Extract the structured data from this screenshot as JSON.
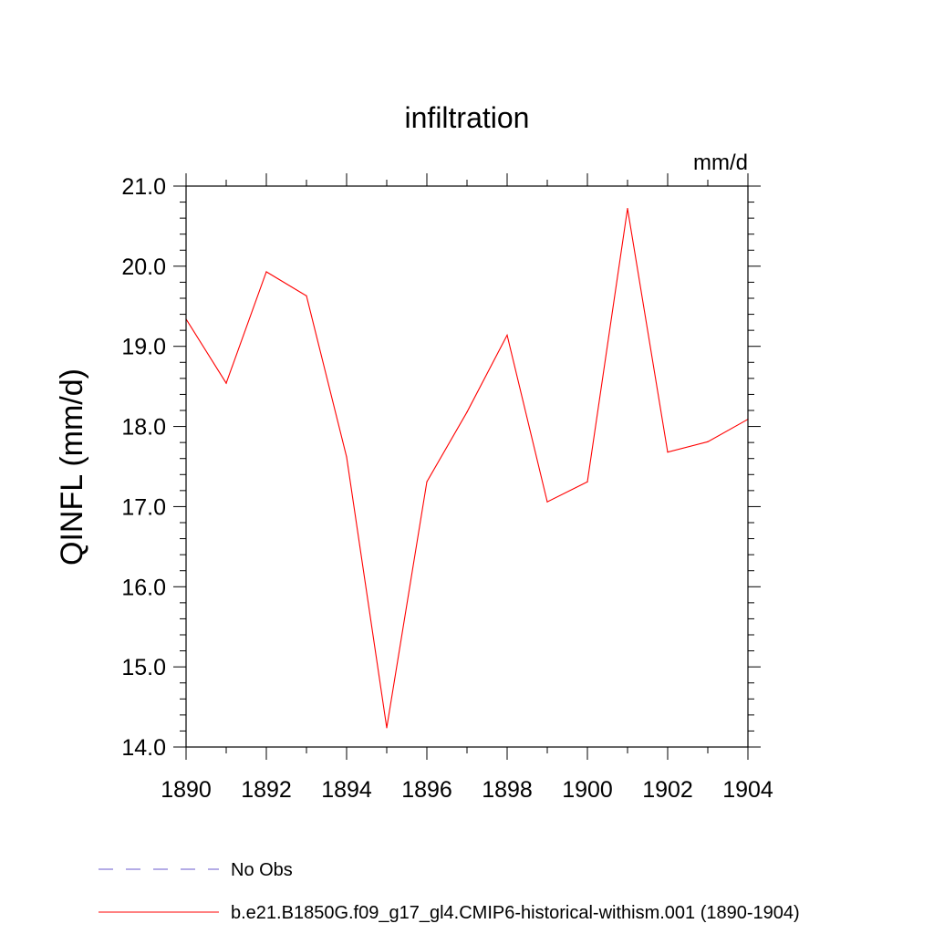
{
  "chart_data": {
    "type": "line",
    "title": "infiltration",
    "units_label": "mm/d",
    "ylabel": "QINFL  (mm/d)",
    "xlabel": "",
    "xlim": [
      1890,
      1904
    ],
    "ylim": [
      14.0,
      21.0
    ],
    "x_ticks": [
      1890,
      1892,
      1894,
      1896,
      1898,
      1900,
      1902,
      1904
    ],
    "x_tick_labels": [
      "1890",
      "1892",
      "1894",
      "1896",
      "1898",
      "1900",
      "1902",
      "1904"
    ],
    "y_ticks": [
      14.0,
      15.0,
      16.0,
      17.0,
      18.0,
      19.0,
      20.0,
      21.0
    ],
    "y_tick_labels": [
      "14.0",
      "15.0",
      "16.0",
      "17.0",
      "18.0",
      "19.0",
      "20.0",
      "21.0"
    ],
    "grid": false,
    "legend_placement": "bottom",
    "series": [
      {
        "name": "b.e21.B1850G.f09_g17_gl4.CMIP6-historical-withism.001 (1890-1904)",
        "color": "#ff0000",
        "x": [
          1890,
          1891,
          1892,
          1893,
          1894,
          1895,
          1896,
          1897,
          1898,
          1899,
          1900,
          1901,
          1902,
          1903,
          1904
        ],
        "y": [
          19.34,
          18.54,
          19.93,
          19.63,
          17.62,
          14.24,
          17.31,
          18.18,
          19.14,
          17.06,
          17.31,
          20.72,
          17.68,
          17.81,
          18.09
        ]
      }
    ],
    "legend": [
      {
        "label": "No Obs",
        "color": "#6a5acd",
        "style": "dashed"
      },
      {
        "label": "b.e21.B1850G.f09_g17_gl4.CMIP6-historical-withism.001 (1890-1904)",
        "color": "#ff0000",
        "style": "solid"
      }
    ]
  }
}
